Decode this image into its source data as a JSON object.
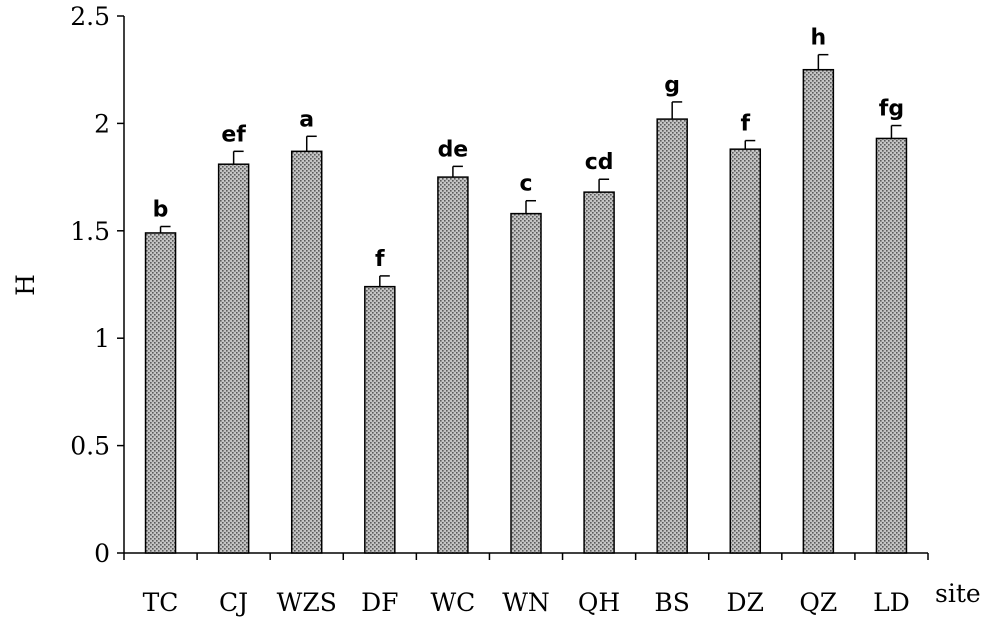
{
  "chart_data": {
    "type": "bar",
    "title": "",
    "xlabel": "site",
    "ylabel": "H",
    "ylim": [
      0,
      2.5
    ],
    "yticks": [
      "0",
      "0.5",
      "1",
      "1.5",
      "2",
      "2.5"
    ],
    "grid": false,
    "categories": [
      "TC",
      "CJ",
      "WZS",
      "DF",
      "WC",
      "WN",
      "QH",
      "BS",
      "DZ",
      "QZ",
      "LD"
    ],
    "values": [
      1.49,
      1.81,
      1.87,
      1.24,
      1.75,
      1.58,
      1.68,
      2.02,
      1.88,
      2.25,
      1.93
    ],
    "errors": [
      0.03,
      0.06,
      0.07,
      0.05,
      0.05,
      0.06,
      0.06,
      0.08,
      0.04,
      0.07,
      0.06
    ],
    "significance": [
      "b",
      "ef",
      "a",
      "f",
      "de",
      "c",
      "cd",
      "g",
      "f",
      "h",
      "fg"
    ]
  }
}
